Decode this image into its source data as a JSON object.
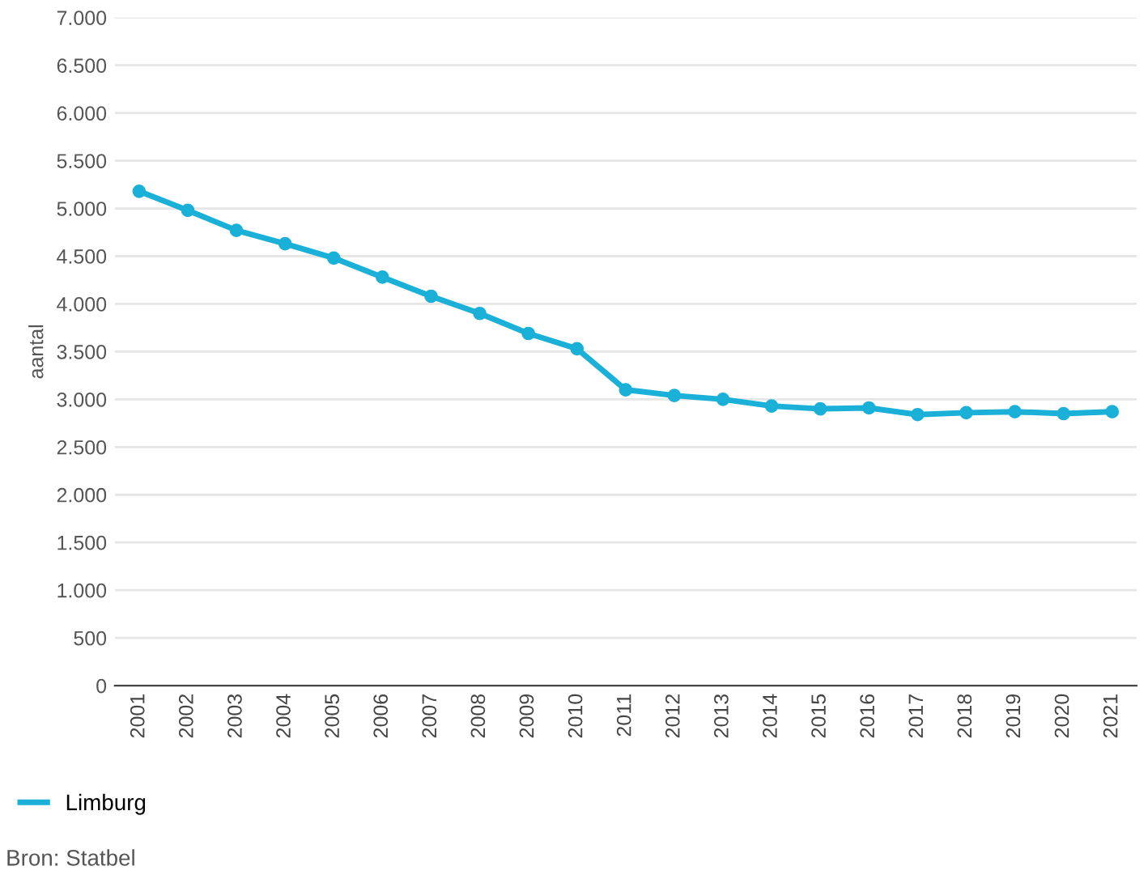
{
  "chart_data": {
    "type": "line",
    "ylabel": "aantal",
    "categories": [
      "2001",
      "2002",
      "2003",
      "2004",
      "2005",
      "2006",
      "2007",
      "2008",
      "2009",
      "2010",
      "2011",
      "2012",
      "2013",
      "2014",
      "2015",
      "2016",
      "2017",
      "2018",
      "2019",
      "2020",
      "2021"
    ],
    "series": [
      {
        "name": "Limburg",
        "color": "#1ab0d8",
        "values": [
          5180,
          4980,
          4770,
          4630,
          4480,
          4280,
          4080,
          3900,
          3690,
          3530,
          3100,
          3040,
          3000,
          2930,
          2900,
          2910,
          2840,
          2860,
          2870,
          2850,
          2870
        ]
      }
    ],
    "ylim": [
      0,
      7000
    ],
    "yticks": [
      {
        "value": 0,
        "label": "0"
      },
      {
        "value": 500,
        "label": "500"
      },
      {
        "value": 1000,
        "label": "1.000"
      },
      {
        "value": 1500,
        "label": "1.500"
      },
      {
        "value": 2000,
        "label": "2.000"
      },
      {
        "value": 2500,
        "label": "2.500"
      },
      {
        "value": 3000,
        "label": "3.000"
      },
      {
        "value": 3500,
        "label": "3.500"
      },
      {
        "value": 4000,
        "label": "4.000"
      },
      {
        "value": 4500,
        "label": "4.500"
      },
      {
        "value": 5000,
        "label": "5.000"
      },
      {
        "value": 5500,
        "label": "5.500"
      },
      {
        "value": 6000,
        "label": "6.000"
      },
      {
        "value": 6500,
        "label": "6.500"
      },
      {
        "value": 7000,
        "label": "7.000"
      }
    ],
    "grid": "y",
    "legend": "bottom left",
    "marker": "circle",
    "line_style": "solid",
    "annotations": [
      "Bron: Statbel"
    ]
  }
}
